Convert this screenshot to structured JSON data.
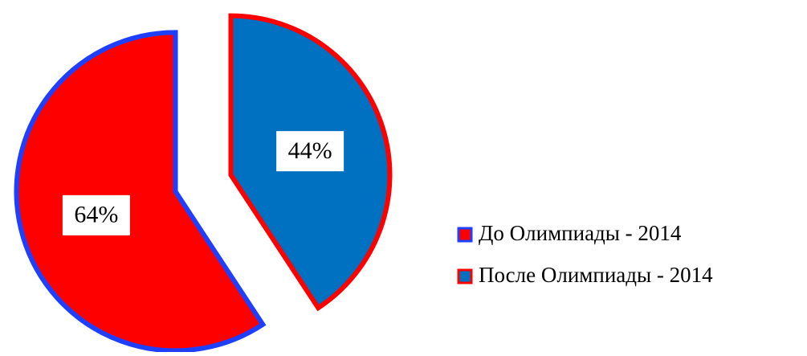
{
  "chart_data": {
    "type": "pie",
    "categories": [
      "До Олимпиады - 2014",
      "После Олимпиады - 2014"
    ],
    "values": [
      64,
      44
    ],
    "value_labels": [
      "64%",
      "44%"
    ],
    "colors": [
      "#ff0000",
      "#0070c0"
    ],
    "edge_colors": [
      "#1f3fff",
      "#ff0000"
    ],
    "legend": "right"
  }
}
